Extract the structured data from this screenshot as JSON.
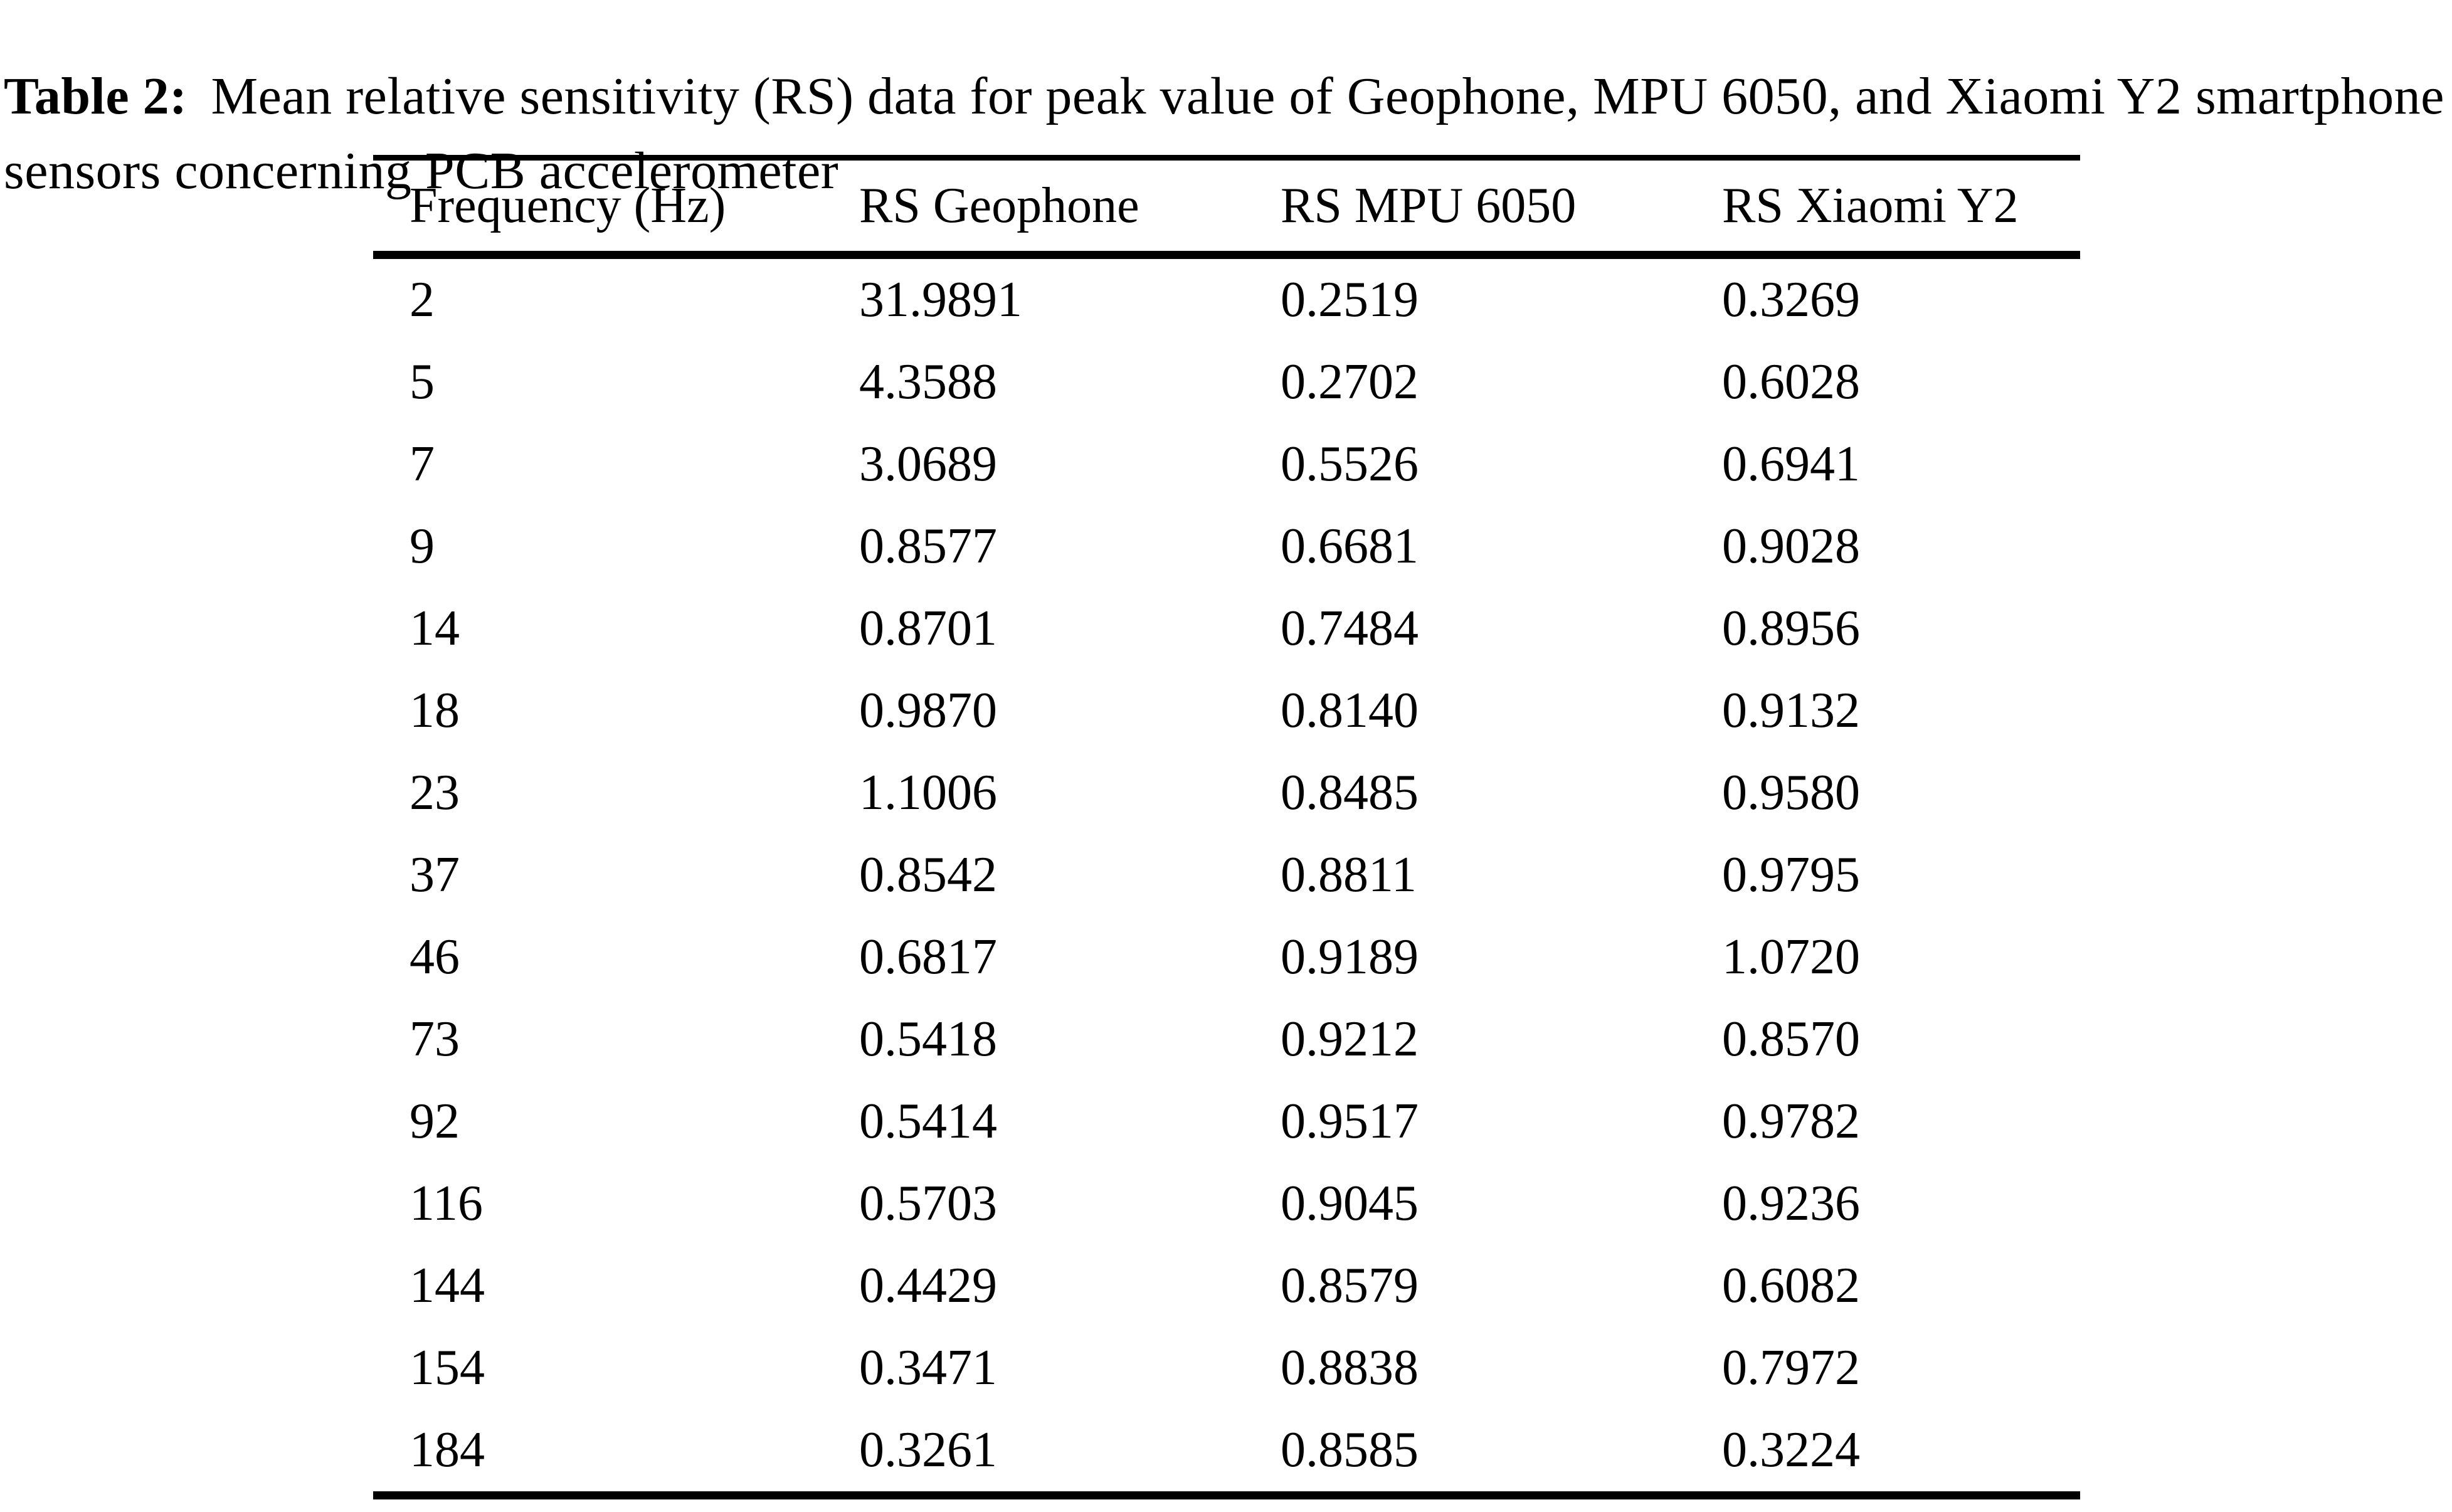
{
  "caption": {
    "label": "Table 2:",
    "line1_rest": "Mean relative sensitivity (RS) data for peak value of Geophone, MPU 6050, and Xiaomi Y2 smartphone",
    "line2": "sensors concerning PCB accelerometer"
  },
  "table": {
    "columns": [
      "Frequency (Hz)",
      "RS Geophone",
      "RS MPU 6050",
      "RS Xiaomi Y2"
    ],
    "rows": [
      [
        "2",
        "31.9891",
        "0.2519",
        "0.3269"
      ],
      [
        "5",
        "4.3588",
        "0.2702",
        "0.6028"
      ],
      [
        "7",
        "3.0689",
        "0.5526",
        "0.6941"
      ],
      [
        "9",
        "0.8577",
        "0.6681",
        "0.9028"
      ],
      [
        "14",
        "0.8701",
        "0.7484",
        "0.8956"
      ],
      [
        "18",
        "0.9870",
        "0.8140",
        "0.9132"
      ],
      [
        "23",
        "1.1006",
        "0.8485",
        "0.9580"
      ],
      [
        "37",
        "0.8542",
        "0.8811",
        "0.9795"
      ],
      [
        "46",
        "0.6817",
        "0.9189",
        "1.0720"
      ],
      [
        "73",
        "0.5418",
        "0.9212",
        "0.8570"
      ],
      [
        "92",
        "0.5414",
        "0.9517",
        "0.9782"
      ],
      [
        "116",
        "0.5703",
        "0.9045",
        "0.9236"
      ],
      [
        "144",
        "0.4429",
        "0.8579",
        "0.6082"
      ],
      [
        "154",
        "0.3471",
        "0.8838",
        "0.7972"
      ],
      [
        "184",
        "0.3261",
        "0.8585",
        "0.3224"
      ]
    ]
  },
  "chart_data": {
    "type": "table",
    "title": "Table 2: Mean relative sensitivity (RS) data for peak value of Geophone, MPU 6050, and Xiaomi Y2 smartphone sensors concerning PCB accelerometer",
    "categories": [
      2,
      5,
      7,
      9,
      14,
      18,
      23,
      37,
      46,
      73,
      92,
      116,
      144,
      154,
      184
    ],
    "xlabel": "Frequency (Hz)",
    "series": [
      {
        "name": "RS Geophone",
        "values": [
          31.9891,
          4.3588,
          3.0689,
          0.8577,
          0.8701,
          0.987,
          1.1006,
          0.8542,
          0.6817,
          0.5418,
          0.5414,
          0.5703,
          0.4429,
          0.3471,
          0.3261
        ]
      },
      {
        "name": "RS MPU 6050",
        "values": [
          0.2519,
          0.2702,
          0.5526,
          0.6681,
          0.7484,
          0.814,
          0.8485,
          0.8811,
          0.9189,
          0.9212,
          0.9517,
          0.9045,
          0.8579,
          0.8838,
          0.8585
        ]
      },
      {
        "name": "RS Xiaomi Y2",
        "values": [
          0.3269,
          0.6028,
          0.6941,
          0.9028,
          0.8956,
          0.9132,
          0.958,
          0.9795,
          1.072,
          0.857,
          0.9782,
          0.9236,
          0.6082,
          0.7972,
          0.3224
        ]
      }
    ]
  },
  "colors": {
    "background": "#ffffff",
    "text": "#000000",
    "rule": "#000000"
  }
}
